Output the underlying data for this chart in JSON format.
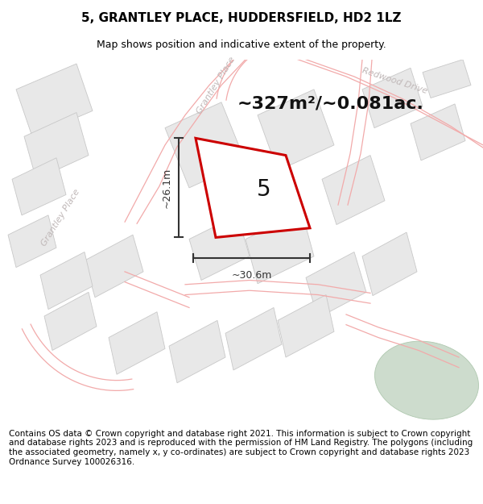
{
  "title": "5, GRANTLEY PLACE, HUDDERSFIELD, HD2 1LZ",
  "subtitle": "Map shows position and indicative extent of the property.",
  "area_text": "~327m²/~0.081ac.",
  "dim_width": "~30.6m",
  "dim_height": "~26.1m",
  "property_label": "5",
  "street_label_1": "Grantley Place",
  "street_label_2": "Redwood Drive",
  "street_label_3": "Grantley Place",
  "footer": "Contains OS data © Crown copyright and database right 2021. This information is subject to Crown copyright and database rights 2023 and is reproduced with the permission of HM Land Registry. The polygons (including the associated geometry, namely x, y co-ordinates) are subject to Crown copyright and database rights 2023 Ordnance Survey 100026316.",
  "map_bg": "#f7f7f7",
  "building_color": "#e8e8e8",
  "building_edge": "#c8c8c8",
  "road_line_color": "#f2aaaa",
  "road_fill_color": "#fce8e8",
  "property_color": "#ffffff",
  "property_edge": "#cc0000",
  "title_fontsize": 11,
  "subtitle_fontsize": 9,
  "area_fontsize": 17,
  "footer_fontsize": 7.5,
  "street_color": "#c0b8b8"
}
